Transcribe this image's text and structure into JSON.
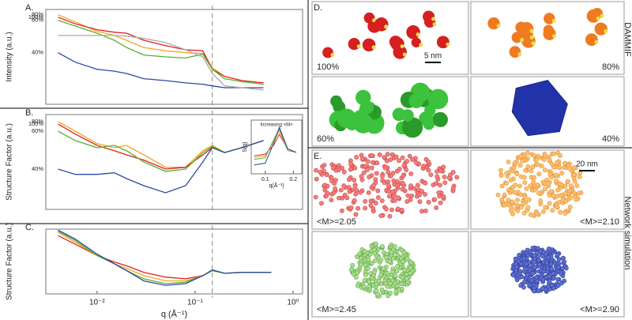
{
  "chart_data": [
    {
      "type": "line",
      "panel_label": "A.",
      "y_label": "Intensity (a.u.)",
      "xscale": "log",
      "yscale": "log",
      "xlim": [
        0.003,
        1.25
      ],
      "ylim": [
        0.01,
        100
      ],
      "vline": 0.15,
      "x": [
        0.004,
        0.006,
        0.01,
        0.015,
        0.02,
        0.03,
        0.05,
        0.08,
        0.12,
        0.15,
        0.2,
        0.3,
        0.5
      ],
      "series": [
        {
          "name": "80%",
          "color": "#f5a623",
          "values": [
            60,
            30,
            12,
            8,
            5,
            2.5,
            1.8,
            1.5,
            1.4,
            0.35,
            0.15,
            0.1,
            0.08
          ]
        },
        {
          "name": "100%",
          "color": "#e02020",
          "values": [
            47,
            25,
            14,
            11,
            10,
            5,
            3,
            2,
            1.8,
            0.3,
            0.15,
            0.1,
            0.08
          ]
        },
        {
          "name": "60%",
          "color": "#55b030",
          "values": [
            35,
            20,
            10,
            5,
            2.5,
            1.2,
            1,
            0.9,
            1.3,
            0.3,
            0.12,
            0.09,
            0.07
          ]
        },
        {
          "name": "40%",
          "color": "#2a4aa0",
          "values": [
            1.5,
            0.6,
            0.3,
            0.25,
            0.2,
            0.12,
            0.1,
            0.08,
            0.07,
            0.06,
            0.05,
            0.05,
            0.05
          ]
        },
        {
          "color": "#aaaaaa",
          "values": [
            8,
            8,
            8,
            8,
            7.5,
            6,
            4,
            2,
            1,
            0.2,
            0.06,
            0.05,
            0.04
          ]
        }
      ]
    },
    {
      "type": "line",
      "panel_label": "B.",
      "y_label": "Structure Factor (a.u.)",
      "xscale": "log",
      "yscale": "log",
      "xlim": [
        0.003,
        1.25
      ],
      "ylim": [
        0.01,
        100
      ],
      "vline": 0.15,
      "x": [
        0.004,
        0.006,
        0.01,
        0.015,
        0.02,
        0.03,
        0.05,
        0.08,
        0.12,
        0.15,
        0.2,
        0.3,
        0.5
      ],
      "series": [
        {
          "name": "80%",
          "color": "#f5a623",
          "values": [
            50,
            20,
            6,
            4,
            5,
            2,
            0.6,
            0.6,
            3,
            5,
            2.5,
            4,
            8
          ]
        },
        {
          "name": "100%",
          "color": "#e02020",
          "values": [
            40,
            15,
            5,
            3,
            2,
            1.2,
            0.5,
            0.6,
            2,
            4,
            2.5,
            4,
            8
          ]
        },
        {
          "name": "60%",
          "color": "#55b030",
          "values": [
            20,
            8,
            4,
            5,
            3,
            1,
            0.4,
            0.5,
            2.5,
            4.5,
            2.5,
            4,
            8
          ]
        },
        {
          "name": "40%",
          "color": "#2a4aa0",
          "values": [
            0.5,
            0.3,
            0.3,
            0.35,
            0.2,
            0.1,
            0.05,
            0.1,
            1,
            4,
            2.5,
            4,
            8
          ]
        }
      ]
    },
    {
      "type": "line",
      "annotation": "Increasing <M>",
      "y_label": "S(q)",
      "x_label": "q(Å⁻¹)",
      "xlim": [
        0.05,
        0.23
      ],
      "ylim": [
        0,
        3
      ],
      "xticks": [
        0.1,
        0.2
      ],
      "x": [
        0.06,
        0.1,
        0.13,
        0.15,
        0.18,
        0.21
      ],
      "series": [
        {
          "color": "#e02020",
          "values": [
            1,
            1.1,
            1.6,
            2.2,
            1.4,
            1.2
          ]
        },
        {
          "color": "#f5a623",
          "values": [
            0.9,
            1,
            1.8,
            2.4,
            1.3,
            1.2
          ]
        },
        {
          "color": "#55b030",
          "values": [
            0.8,
            0.9,
            1.9,
            2.5,
            1.3,
            1.2
          ]
        },
        {
          "color": "#2a4aa0",
          "values": [
            0.5,
            0.6,
            1.7,
            2.6,
            1.4,
            1.2
          ]
        }
      ]
    },
    {
      "type": "line",
      "panel_label": "C.",
      "y_label": "Structure Factor (a.u.)",
      "x_label": "q (Å⁻¹)",
      "xscale": "log",
      "yscale": "log",
      "xlim": [
        0.003,
        1.25
      ],
      "ylim": [
        0.1,
        100
      ],
      "vline": 0.15,
      "xticks": [
        {
          "value": 0.01,
          "label": "10⁻²"
        },
        {
          "value": 0.1,
          "label": "10⁻¹"
        },
        {
          "value": 1,
          "label": "10⁰"
        }
      ],
      "x": [
        0.004,
        0.006,
        0.01,
        0.015,
        0.02,
        0.03,
        0.05,
        0.08,
        0.12,
        0.15,
        0.2,
        0.3,
        0.6
      ],
      "series": [
        {
          "color": "#e02020",
          "values": [
            50,
            20,
            6,
            3,
            2,
            1,
            0.6,
            0.5,
            0.7,
            1.2,
            0.9,
            1,
            1
          ]
        },
        {
          "color": "#f5a623",
          "values": [
            70,
            25,
            6,
            2.5,
            1.5,
            0.7,
            0.4,
            0.4,
            0.7,
            1.2,
            0.9,
            1,
            1
          ]
        },
        {
          "color": "#55b030",
          "values": [
            80,
            30,
            6,
            2.5,
            1.2,
            0.5,
            0.3,
            0.35,
            0.7,
            1.2,
            0.9,
            1,
            1
          ]
        },
        {
          "color": "#2a4aa0",
          "values": [
            90,
            35,
            7,
            2.5,
            1.2,
            0.4,
            0.25,
            0.3,
            0.7,
            1.3,
            0.9,
            1,
            1
          ]
        }
      ]
    }
  ],
  "structures": {
    "dammif": {
      "panel_label": "D.",
      "side_label": "DAMMIF",
      "scale_bar": "5 nm",
      "cells": [
        "100%",
        "80%",
        "60%",
        "40%"
      ]
    },
    "network": {
      "panel_label": "E.",
      "side_label": "Network simulation",
      "scale_bar": "20 nm",
      "cells": [
        "<M>=2.05",
        "<M>=2.10",
        "<M>=2.45",
        "<M>=2.90"
      ]
    }
  }
}
